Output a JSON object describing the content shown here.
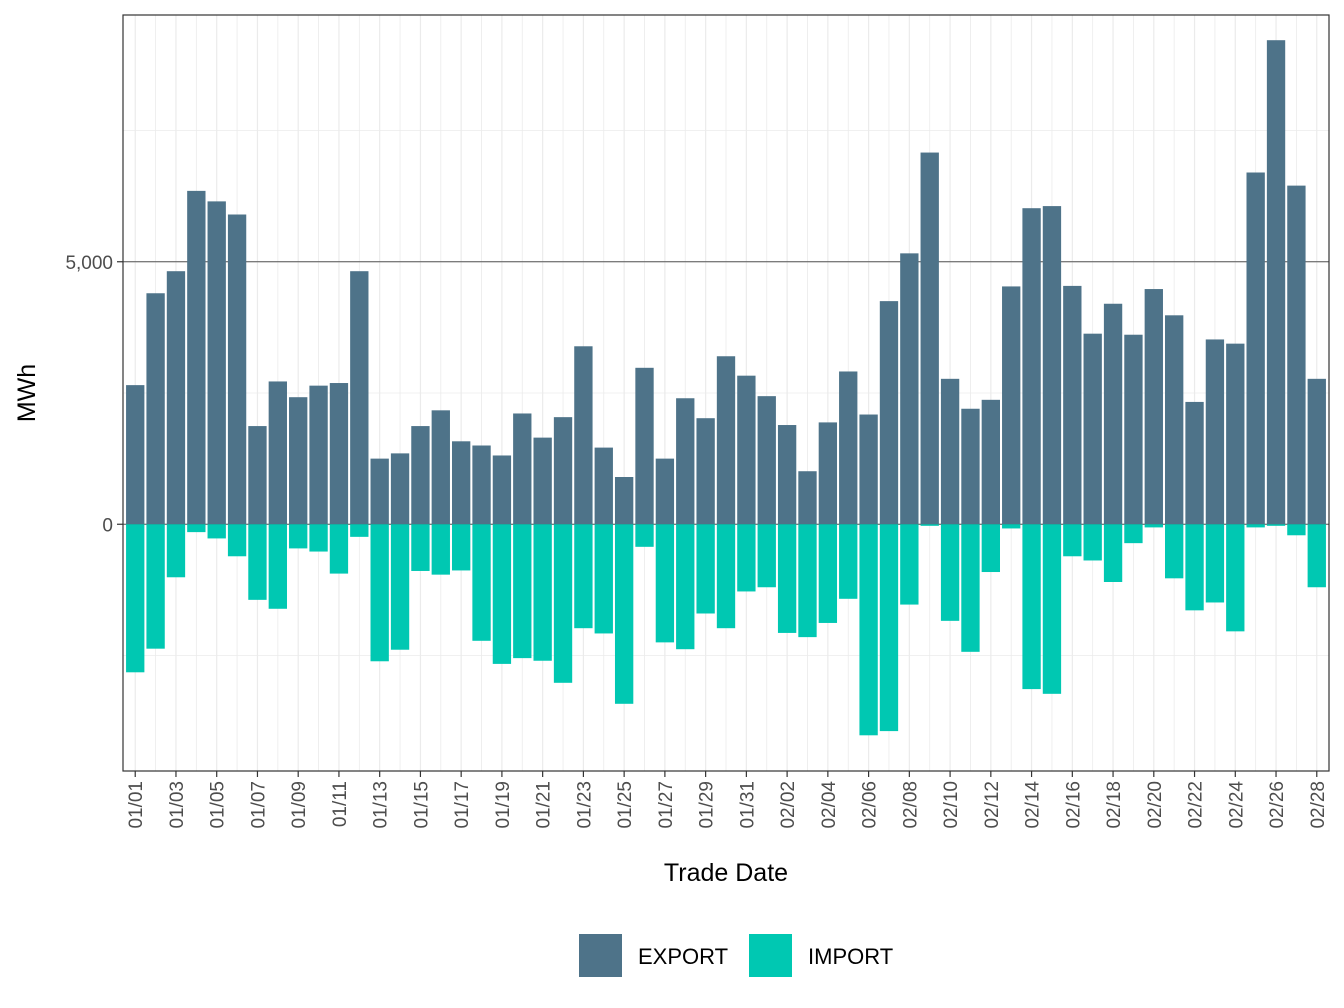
{
  "chart_data": {
    "type": "bar",
    "stacked": true,
    "xlabel": "Trade Date",
    "ylabel": "MWh",
    "ylim": [
      -4700,
      9700
    ],
    "yticks": [
      0,
      5000
    ],
    "ytick_labels": [
      "0",
      "5,000"
    ],
    "categories": [
      "01/01",
      "01/02",
      "01/03",
      "01/04",
      "01/05",
      "01/06",
      "01/07",
      "01/08",
      "01/09",
      "01/10",
      "01/11",
      "01/12",
      "01/13",
      "01/14",
      "01/15",
      "01/16",
      "01/17",
      "01/18",
      "01/19",
      "01/20",
      "01/21",
      "01/22",
      "01/23",
      "01/24",
      "01/25",
      "01/26",
      "01/27",
      "01/28",
      "01/29",
      "01/30",
      "01/31",
      "02/01",
      "02/02",
      "02/03",
      "02/04",
      "02/05",
      "02/06",
      "02/07",
      "02/08",
      "02/09",
      "02/10",
      "02/11",
      "02/12",
      "02/13",
      "02/14",
      "02/15",
      "02/16",
      "02/17",
      "02/18",
      "02/19",
      "02/20",
      "02/21",
      "02/22",
      "02/23",
      "02/24",
      "02/25",
      "02/26",
      "02/27",
      "02/28"
    ],
    "tick_labels": [
      "01/01",
      "01/03",
      "01/05",
      "01/07",
      "01/09",
      "01/11",
      "01/13",
      "01/15",
      "01/17",
      "01/19",
      "01/21",
      "01/23",
      "01/25",
      "01/27",
      "01/29",
      "01/31",
      "02/02",
      "02/04",
      "02/06",
      "02/08",
      "02/10",
      "02/12",
      "02/14",
      "02/16",
      "02/18",
      "02/20",
      "02/22",
      "02/24",
      "02/26",
      "02/28"
    ],
    "series": [
      {
        "name": "EXPORT",
        "color": "#4e7389",
        "values": [
          2650,
          4400,
          4820,
          6350,
          6150,
          5900,
          1870,
          2720,
          2420,
          2640,
          2690,
          4820,
          1250,
          1350,
          1870,
          2170,
          1580,
          1500,
          1310,
          2110,
          1650,
          2040,
          3390,
          1460,
          900,
          2980,
          1250,
          2400,
          2020,
          3200,
          2830,
          2440,
          1890,
          1010,
          1940,
          2910,
          2090,
          4250,
          5160,
          7080,
          2770,
          2200,
          2370,
          4530,
          6020,
          6060,
          4540,
          3630,
          4200,
          3610,
          4480,
          3980,
          2330,
          3520,
          3440,
          6700,
          9220,
          6450,
          2770
        ]
      },
      {
        "name": "IMPORT",
        "color": "#00c8b2",
        "values": [
          -2820,
          -2370,
          -1010,
          -150,
          -270,
          -610,
          -1440,
          -1610,
          -460,
          -520,
          -940,
          -240,
          -2610,
          -2390,
          -890,
          -960,
          -880,
          -2220,
          -2660,
          -2550,
          -2600,
          -3020,
          -1980,
          -2080,
          -3420,
          -430,
          -2250,
          -2380,
          -1700,
          -1980,
          -1280,
          -1200,
          -2070,
          -2150,
          -1880,
          -1420,
          -4020,
          -3940,
          -1530,
          -30,
          -1840,
          -2430,
          -910,
          -80,
          -3140,
          -3230,
          -610,
          -690,
          -1100,
          -360,
          -60,
          -1030,
          -1640,
          -1490,
          -2040,
          -60,
          -30,
          -210,
          -1200
        ]
      }
    ],
    "legend": {
      "position": "bottom",
      "entries": [
        "EXPORT",
        "IMPORT"
      ]
    },
    "grid": true
  }
}
